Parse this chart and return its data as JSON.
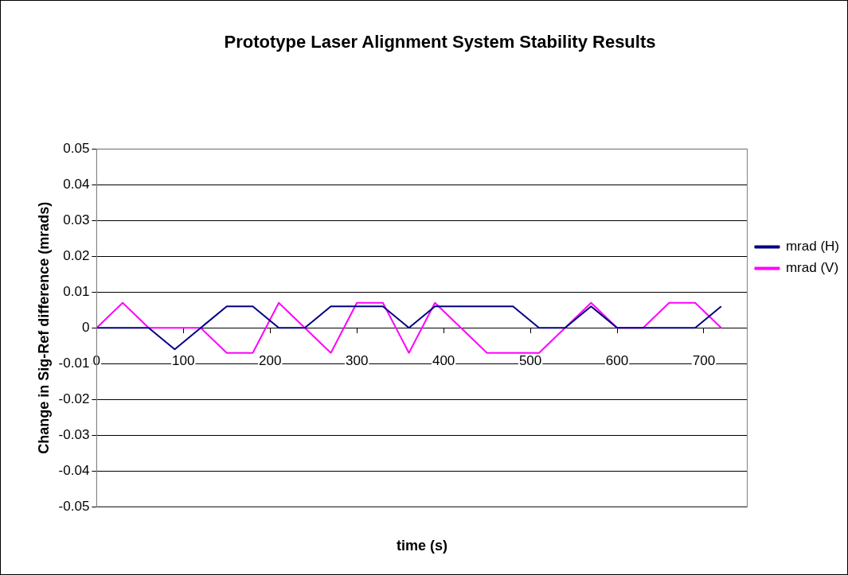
{
  "chart_data": {
    "type": "line",
    "title": "Prototype Laser Alignment System Stability Results",
    "xlabel": "time (s)",
    "ylabel": "Change in Sig-Ref difference (mrads)",
    "x": [
      0,
      30,
      60,
      90,
      120,
      150,
      180,
      210,
      240,
      270,
      300,
      330,
      360,
      390,
      420,
      450,
      480,
      510,
      540,
      570,
      600,
      630,
      660,
      690,
      720
    ],
    "series": [
      {
        "name": "mrad (H)",
        "color": "#000080",
        "values": [
          0,
          0,
          0,
          -0.006,
          0,
          0.006,
          0.006,
          0,
          0,
          0.006,
          0.006,
          0.006,
          0,
          0.006,
          0.006,
          0.006,
          0.006,
          0,
          0,
          0.006,
          0,
          0,
          0,
          0,
          0.006
        ]
      },
      {
        "name": "mrad (V)",
        "color": "#ff00ff",
        "values": [
          0,
          0.007,
          0,
          0,
          0,
          -0.007,
          -0.007,
          0.007,
          0,
          -0.007,
          0.007,
          0.007,
          -0.007,
          0.007,
          0,
          -0.007,
          -0.007,
          -0.007,
          0,
          0.007,
          0,
          0,
          0.007,
          0.007,
          0
        ]
      }
    ],
    "xlim": [
      0,
      750
    ],
    "xticks": [
      0,
      100,
      200,
      300,
      400,
      500,
      600,
      700
    ],
    "ylim": [
      -0.05,
      0.05
    ],
    "yticks": [
      -0.05,
      -0.04,
      -0.03,
      -0.02,
      -0.01,
      0,
      0.01,
      0.02,
      0.03,
      0.04,
      0.05
    ],
    "grid": "y",
    "legend": "right",
    "marker": "none",
    "line_style": "solid"
  }
}
